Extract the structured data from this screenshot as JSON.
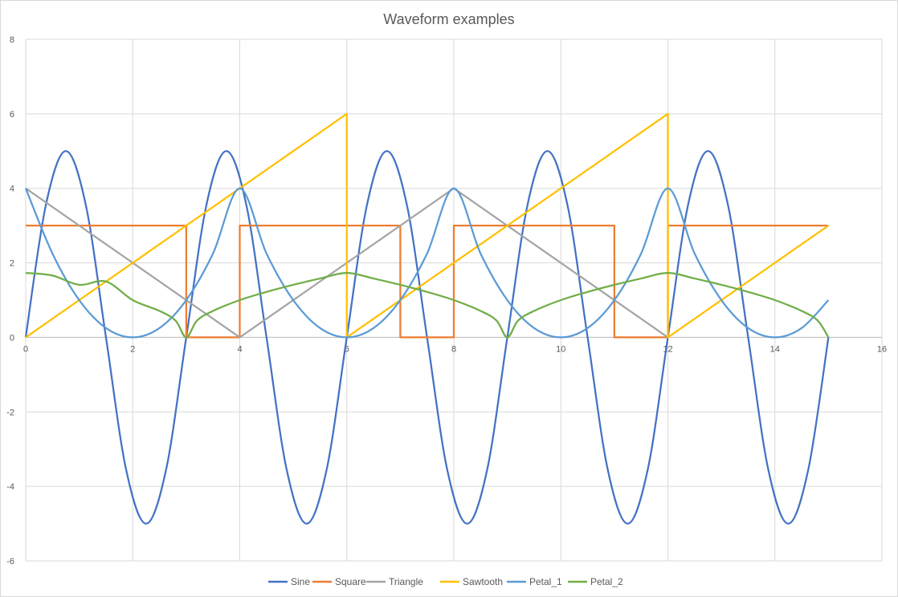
{
  "chart_data": {
    "type": "line",
    "title": "Waveform examples",
    "xlabel": "",
    "ylabel": "",
    "xlim": [
      0,
      16
    ],
    "ylim": [
      -6,
      8
    ],
    "xticks": [
      0,
      2,
      4,
      6,
      8,
      10,
      12,
      14,
      16
    ],
    "yticks": [
      -6,
      -4,
      -2,
      0,
      2,
      4,
      6,
      8
    ],
    "x_tick_labels": [
      "0",
      "2",
      "4",
      "6",
      "8",
      "10",
      "12",
      "14",
      "16"
    ],
    "y_tick_labels": [
      "-6",
      "-4",
      "-2",
      "0",
      "2",
      "4",
      "6",
      "8"
    ],
    "grid": true,
    "legend_position": "bottom",
    "series": [
      {
        "name": "Sine",
        "color": "#4472C4",
        "x": [
          0,
          0.375,
          0.75,
          1.125,
          1.5,
          1.875,
          2.25,
          2.625,
          3,
          3.375,
          3.75,
          4.125,
          4.5,
          4.875,
          5.25,
          5.625,
          6,
          6.375,
          6.75,
          7.125,
          7.5,
          7.875,
          8.25,
          8.625,
          9,
          9.375,
          9.75,
          10.125,
          10.5,
          10.875,
          11.25,
          11.625,
          12,
          12.375,
          12.75,
          13.125,
          13.5,
          13.875,
          14.25,
          14.625,
          15
        ],
        "y": [
          0,
          3.54,
          5,
          3.54,
          0,
          -3.54,
          -5,
          -3.54,
          0,
          3.54,
          5,
          3.54,
          0,
          -3.54,
          -5,
          -3.54,
          0,
          3.54,
          5,
          3.54,
          0,
          -3.54,
          -5,
          -3.54,
          0,
          3.54,
          5,
          3.54,
          0,
          -3.54,
          -5,
          -3.54,
          0,
          3.54,
          5,
          3.54,
          0,
          -3.54,
          -5,
          -3.54,
          0
        ]
      },
      {
        "name": "Square",
        "color": "#ED7D31",
        "x": [
          0,
          3,
          3,
          4,
          4,
          7,
          7,
          8,
          8,
          11,
          11,
          12,
          12,
          15
        ],
        "y": [
          3,
          3,
          0,
          0,
          3,
          3,
          0,
          0,
          3,
          3,
          0,
          0,
          3,
          3
        ]
      },
      {
        "name": "Triangle",
        "color": "#A5A5A5",
        "x": [
          0,
          4,
          8,
          12
        ],
        "y": [
          4,
          0,
          4,
          0
        ]
      },
      {
        "name": "Sawtooth",
        "color": "#FFC000",
        "x": [
          0,
          6,
          6,
          12,
          12,
          15
        ],
        "y": [
          0,
          6,
          0,
          6,
          0,
          3
        ]
      },
      {
        "name": "Petal_1",
        "color": "#5B9BD5",
        "x": [
          0,
          0.5,
          1,
          1.5,
          2,
          2.5,
          3,
          3.5,
          4,
          4.5,
          5,
          5.5,
          6,
          6.5,
          7,
          7.5,
          8,
          8.5,
          9,
          9.5,
          10,
          10.5,
          11,
          11.5,
          12,
          12.5,
          13,
          13.5,
          14,
          14.5,
          15
        ],
        "y": [
          4,
          2.25,
          1,
          0.25,
          0,
          0.25,
          1,
          2.25,
          4,
          2.25,
          1,
          0.25,
          0,
          0.25,
          1,
          2.25,
          4,
          2.25,
          1,
          0.25,
          0,
          0.25,
          1,
          2.25,
          4,
          2.25,
          1,
          0.25,
          0,
          0.25,
          1
        ]
      },
      {
        "name": "Petal_2",
        "color": "#70AD47",
        "x": [
          0,
          0.5,
          1,
          1.5,
          2,
          2.5,
          2.8,
          3,
          3.2,
          3.5,
          4,
          4.5,
          5,
          5.5,
          6,
          6.5,
          7,
          7.5,
          8,
          8.5,
          8.8,
          9,
          9.2,
          9.5,
          10,
          10.5,
          11,
          11.5,
          12,
          12.5,
          13,
          13.5,
          14,
          14.5,
          14.8,
          15
        ],
        "y": [
          1.73,
          1.66,
          1.41,
          1.5,
          1,
          0.71,
          0.45,
          0,
          0.45,
          0.71,
          1,
          1.22,
          1.41,
          1.58,
          1.73,
          1.58,
          1.41,
          1.22,
          1,
          0.71,
          0.45,
          0,
          0.45,
          0.71,
          1,
          1.22,
          1.41,
          1.58,
          1.73,
          1.58,
          1.41,
          1.22,
          1,
          0.71,
          0.45,
          0
        ]
      }
    ]
  }
}
